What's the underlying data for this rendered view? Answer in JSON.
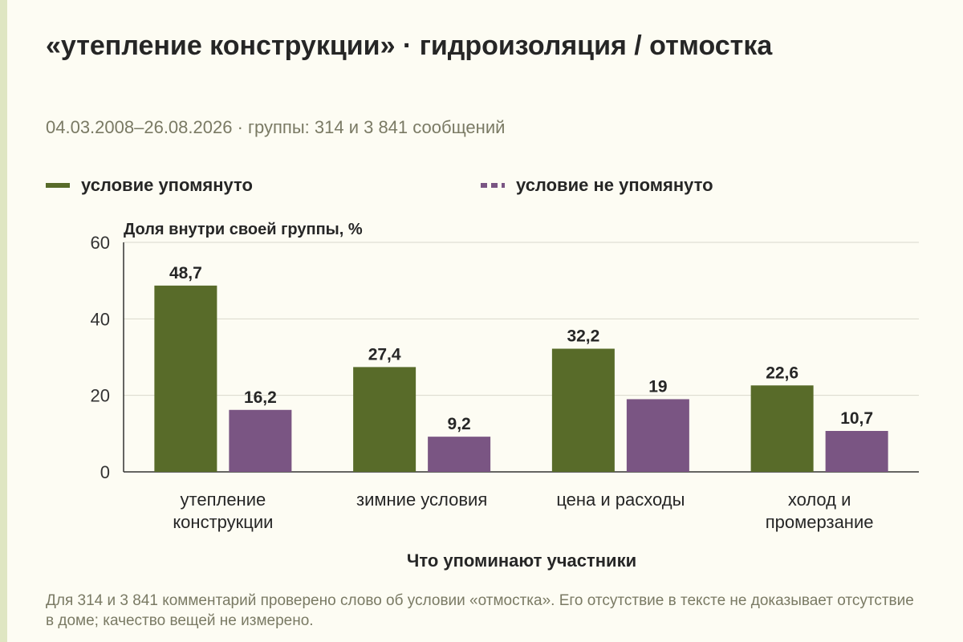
{
  "title": "«утепление конструкции» · гидроизоляция / отмостка",
  "subtitle": "04.03.2008–26.08.2026 · группы: 314 и 3 841 сообщений",
  "note": "Для 314 и 3 841 комментарий проверено слово об условии «отмостка». Его отсутствие в тексте не доказывает отсутствие в доме; качество вещей не измерено.",
  "colors": {
    "series1": "#586b29",
    "series2": "#7a5583",
    "grid": "#d9d9cc",
    "axis": "#333333"
  },
  "chart_data": {
    "type": "bar",
    "categories": [
      "утепление конструкции",
      "зимние условия",
      "цена и расходы",
      "холод и промерзание"
    ],
    "series": [
      {
        "name": "условие упомянуто",
        "values": [
          48.7,
          27.4,
          32.2,
          22.6
        ],
        "labels": [
          "48,7",
          "27,4",
          "32,2",
          "22,6"
        ]
      },
      {
        "name": "условие не упомянуто",
        "values": [
          16.2,
          9.2,
          19,
          10.7
        ],
        "labels": [
          "16,2",
          "9,2",
          "19",
          "10,7"
        ]
      }
    ],
    "ylabel": "Доля внутри своей группы, %",
    "xlabel": "Что упоминают участники",
    "ylim": [
      0,
      60
    ],
    "yticks": [
      0,
      20,
      40,
      60
    ],
    "grid": true,
    "legend": "top"
  }
}
